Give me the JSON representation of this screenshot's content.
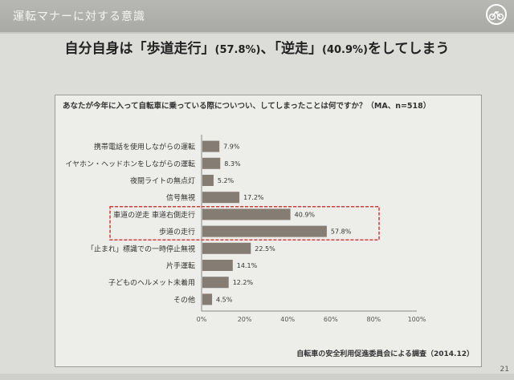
{
  "header": {
    "title": "運転マナーに対する意識"
  },
  "headline": {
    "part1": "自分自身は「歩道走行」",
    "pct1": "(57.8%)",
    "part2": "、「逆走」",
    "pct2": "(40.9%)",
    "part3": "をしてしまう"
  },
  "chart_data": {
    "type": "bar",
    "orientation": "horizontal",
    "title": "あなたが今年に入って自転車に乗っている際についつい、してしまったことは何ですか？（MA、n=518）",
    "categories": [
      "携帯電話を使用しながらの運転",
      "イヤホン・ヘッドホンをしながらの運転",
      "夜間ライトの無点灯",
      "信号無視",
      "車道の逆走 車道右側走行",
      "歩道の走行",
      "「止まれ」標識での一時停止無視",
      "片手運転",
      "子どものヘルメット未着用",
      "その他"
    ],
    "values": [
      7.9,
      8.3,
      5.2,
      17.2,
      40.9,
      57.8,
      22.5,
      14.1,
      12.2,
      4.5
    ],
    "value_labels": [
      "7.9%",
      "8.3%",
      "5.2%",
      "17.2%",
      "40.9%",
      "57.8%",
      "22.5%",
      "14.1%",
      "12.2%",
      "4.5%"
    ],
    "xlim": [
      0,
      100
    ],
    "x_ticks": [
      "0%",
      "20%",
      "40%",
      "60%",
      "80%",
      "100%"
    ],
    "highlighted": [
      "車道の逆走 車道右側走行",
      "歩道の走行"
    ],
    "bar_color": "#857c74",
    "highlight_color": "#d83a3a",
    "grid": false
  },
  "source": "自転車の安全利用促進委員会による調査（2014.12）",
  "page_number": "21"
}
